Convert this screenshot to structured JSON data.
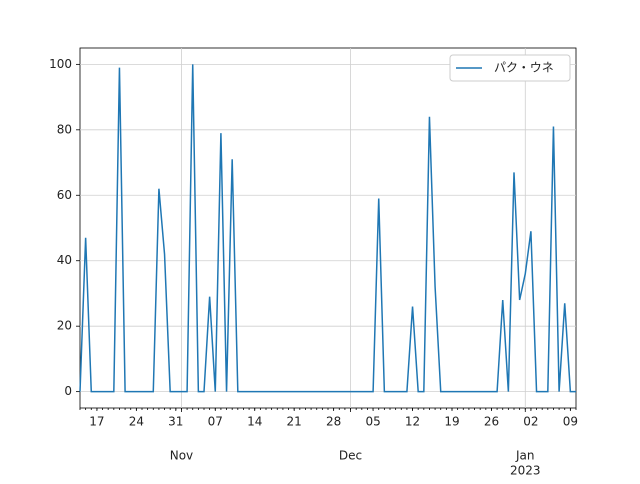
{
  "chart_data": {
    "type": "line",
    "x": [
      "2022-10-14",
      "2022-10-15",
      "2022-10-16",
      "2022-10-17",
      "2022-10-18",
      "2022-10-19",
      "2022-10-20",
      "2022-10-21",
      "2022-10-22",
      "2022-10-23",
      "2022-10-24",
      "2022-10-25",
      "2022-10-26",
      "2022-10-27",
      "2022-10-28",
      "2022-10-29",
      "2022-10-30",
      "2022-10-31",
      "2022-11-01",
      "2022-11-02",
      "2022-11-03",
      "2022-11-04",
      "2022-11-05",
      "2022-11-06",
      "2022-11-07",
      "2022-11-08",
      "2022-11-09",
      "2022-11-10",
      "2022-11-11",
      "2022-11-12",
      "2022-11-13",
      "2022-11-14",
      "2022-11-15",
      "2022-11-16",
      "2022-11-17",
      "2022-11-18",
      "2022-11-19",
      "2022-11-20",
      "2022-11-21",
      "2022-11-22",
      "2022-11-23",
      "2022-11-24",
      "2022-11-25",
      "2022-11-26",
      "2022-11-27",
      "2022-11-28",
      "2022-11-29",
      "2022-11-30",
      "2022-12-01",
      "2022-12-02",
      "2022-12-03",
      "2022-12-04",
      "2022-12-05",
      "2022-12-06",
      "2022-12-07",
      "2022-12-08",
      "2022-12-09",
      "2022-12-10",
      "2022-12-11",
      "2022-12-12",
      "2022-12-13",
      "2022-12-14",
      "2022-12-15",
      "2022-12-16",
      "2022-12-17",
      "2022-12-18",
      "2022-12-19",
      "2022-12-20",
      "2022-12-21",
      "2022-12-22",
      "2022-12-23",
      "2022-12-24",
      "2022-12-25",
      "2022-12-26",
      "2022-12-27",
      "2022-12-28",
      "2022-12-29",
      "2022-12-30",
      "2022-12-31",
      "2023-01-01",
      "2023-01-02",
      "2023-01-03",
      "2023-01-04",
      "2023-01-05",
      "2023-01-06",
      "2023-01-07",
      "2023-01-08",
      "2023-01-09",
      "2023-01-10"
    ],
    "series": [
      {
        "name": "パク・ウネ",
        "color": "#1f77b4",
        "values": [
          0,
          47,
          0,
          0,
          0,
          0,
          0,
          99,
          0,
          0,
          0,
          0,
          0,
          0,
          62,
          42,
          0,
          0,
          0,
          0,
          100,
          0,
          0,
          29,
          0,
          79,
          0,
          71,
          0,
          0,
          0,
          0,
          0,
          0,
          0,
          0,
          0,
          0,
          0,
          0,
          0,
          0,
          0,
          0,
          0,
          0,
          0,
          0,
          0,
          0,
          0,
          0,
          0,
          59,
          0,
          0,
          0,
          0,
          0,
          26,
          0,
          0,
          84,
          32,
          0,
          0,
          0,
          0,
          0,
          0,
          0,
          0,
          0,
          0,
          0,
          28,
          0,
          67,
          28,
          36,
          49,
          0,
          0,
          0,
          81,
          0,
          27,
          0,
          0
        ]
      }
    ],
    "xlim": [
      "2022-10-14",
      "2023-01-10"
    ],
    "xticks": [
      {
        "value": "2022-10-17",
        "label": "17"
      },
      {
        "value": "2022-10-24",
        "label": "24"
      },
      {
        "value": "2022-10-31",
        "label": "31"
      },
      {
        "value": "2022-11-07",
        "label": "07"
      },
      {
        "value": "2022-11-14",
        "label": "14"
      },
      {
        "value": "2022-11-21",
        "label": "21"
      },
      {
        "value": "2022-11-28",
        "label": "28"
      },
      {
        "value": "2022-12-05",
        "label": "05"
      },
      {
        "value": "2022-12-12",
        "label": "12"
      },
      {
        "value": "2022-12-19",
        "label": "19"
      },
      {
        "value": "2022-12-26",
        "label": "26"
      },
      {
        "value": "2023-01-02",
        "label": "02"
      },
      {
        "value": "2023-01-09",
        "label": "09"
      }
    ],
    "month_ticks": [
      {
        "value": "2022-11-01",
        "label": "Nov"
      },
      {
        "value": "2022-12-01",
        "label": "Dec"
      },
      {
        "value": "2023-01-01",
        "label": "Jan"
      }
    ],
    "year_label": {
      "value": "2023-01-01",
      "label": "2023"
    },
    "ylim": [
      -5,
      105
    ],
    "yticks": [
      0,
      20,
      40,
      60,
      80,
      100
    ],
    "grid": true,
    "legend": "upper right"
  }
}
